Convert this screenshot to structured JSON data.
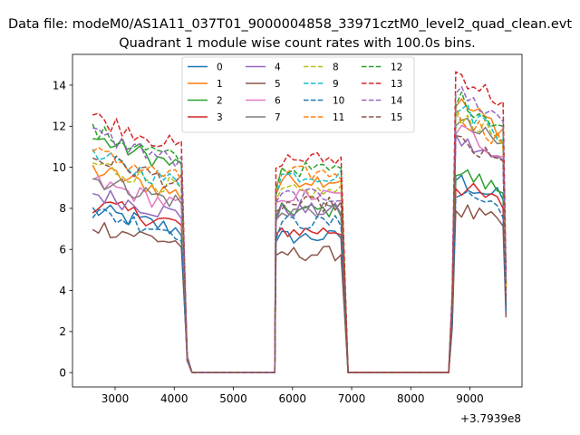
{
  "chart_data": {
    "type": "line",
    "suptitle": "Data file: modeM0/AS1A11_037T01_9000004858_33971cztM0_level2_quad_clean.evt",
    "title": "Quadrant 1 module wise count rates with 100.0s bins.",
    "xlabel": "",
    "ylabel": "",
    "x_offset_label": "+3.7939e8",
    "xlim": [
      2280,
      9880
    ],
    "ylim": [
      -0.7,
      15.5
    ],
    "x_ticks": [
      3000,
      4000,
      5000,
      6000,
      7000,
      8000,
      9000
    ],
    "y_ticks": [
      0,
      2,
      4,
      6,
      8,
      10,
      12,
      14
    ],
    "legend_position": "upper center",
    "legend_columns": 4,
    "series": [
      {
        "name": "0",
        "color": "#1f77b4",
        "style": "solid"
      },
      {
        "name": "1",
        "color": "#ff7f0e",
        "style": "solid"
      },
      {
        "name": "2",
        "color": "#2ca02c",
        "style": "solid"
      },
      {
        "name": "3",
        "color": "#d62728",
        "style": "solid"
      },
      {
        "name": "4",
        "color": "#9467bd",
        "style": "solid"
      },
      {
        "name": "5",
        "color": "#8c564b",
        "style": "solid"
      },
      {
        "name": "6",
        "color": "#e377c2",
        "style": "solid"
      },
      {
        "name": "7",
        "color": "#7f7f7f",
        "style": "solid"
      },
      {
        "name": "8",
        "color": "#bcbd22",
        "style": "dashed"
      },
      {
        "name": "9",
        "color": "#17becf",
        "style": "dashed"
      },
      {
        "name": "10",
        "color": "#1f77b4",
        "style": "dashed"
      },
      {
        "name": "11",
        "color": "#ff7f0e",
        "style": "dashed"
      },
      {
        "name": "12",
        "color": "#2ca02c",
        "style": "dashed"
      },
      {
        "name": "13",
        "color": "#d62728",
        "style": "dashed"
      },
      {
        "name": "14",
        "color": "#9467bd",
        "style": "dashed"
      },
      {
        "name": "15",
        "color": "#8c564b",
        "style": "dashed"
      }
    ],
    "levels": {
      "seg1": [
        7.6,
        9.5,
        11.0,
        7.9,
        8.4,
        6.9,
        8.9,
        9.1,
        9.8,
        10.1,
        7.5,
        10.3,
        11.3,
        12.0,
        11.2,
        10.1
      ],
      "seg2": [
        6.6,
        9.4,
        7.9,
        6.9,
        7.9,
        5.8,
        8.6,
        7.9,
        8.8,
        9.6,
        7.3,
        9.7,
        9.9,
        10.4,
        8.6,
        8.2
      ],
      "seg3": [
        9.2,
        12.9,
        9.6,
        8.9,
        11.1,
        7.8,
        11.6,
        12.0,
        12.4,
        12.7,
        8.7,
        12.3,
        13.1,
        14.3,
        13.4,
        11.0
      ]
    },
    "segments": {
      "seg1_x": [
        2620,
        4120
      ],
      "seg2_x": [
        5720,
        6860
      ],
      "seg3_x": [
        8720,
        9620
      ],
      "bin": 100
    }
  }
}
